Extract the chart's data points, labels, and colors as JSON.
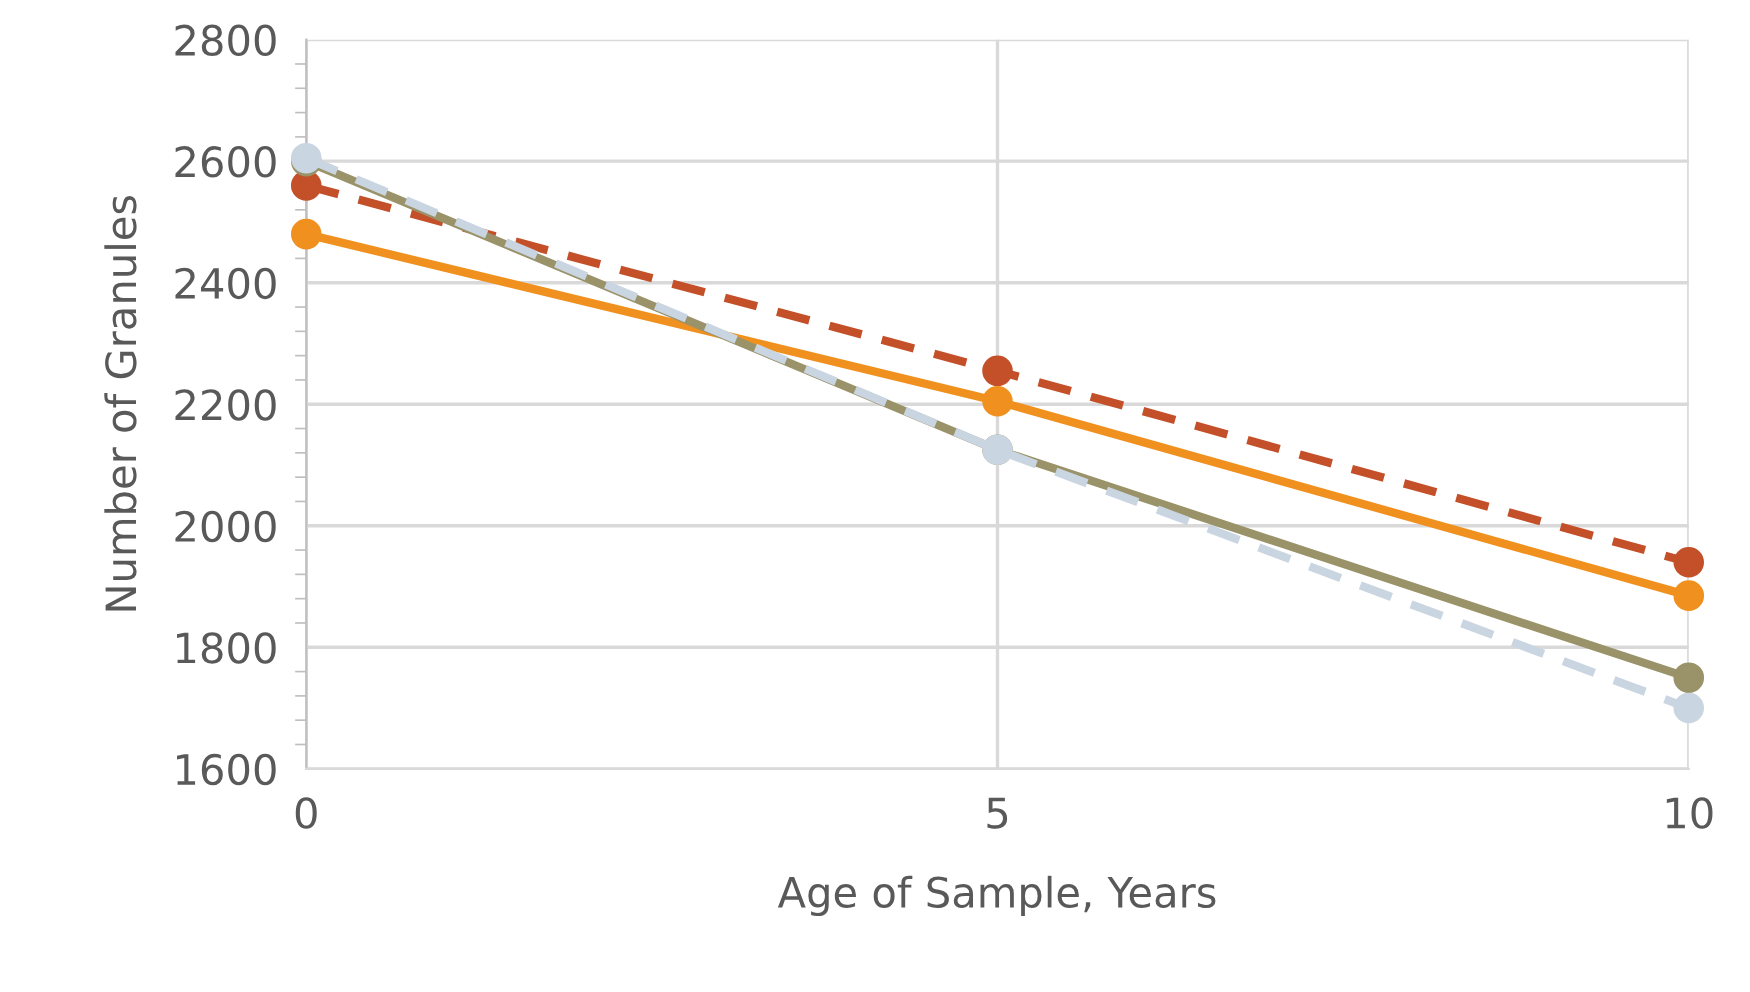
{
  "chart_data": {
    "type": "line",
    "xlabel": "Age of Sample, Years",
    "ylabel": "Number of Granules",
    "x": [
      0,
      5,
      10
    ],
    "series": [
      {
        "color": "#f0901e",
        "values": [
          2480,
          2205,
          1885
        ],
        "line_style": "solid"
      },
      {
        "color": "#c4502a",
        "values": [
          2560,
          2255,
          1940
        ],
        "line_style": "dashed"
      },
      {
        "color": "#9a9268",
        "values": [
          2600,
          2125,
          1750
        ],
        "line_style": "solid"
      },
      {
        "color": "#c9d5e1",
        "values": [
          2605,
          2125,
          1700
        ],
        "line_style": "dashed"
      }
    ],
    "xlim": [
      0,
      10
    ],
    "xticks": [
      0,
      5,
      10
    ],
    "ylim": [
      1600,
      2800
    ],
    "yticks": [
      1600,
      1800,
      2000,
      2200,
      2400,
      2600,
      2800
    ],
    "grid": true,
    "marker": "circle"
  }
}
